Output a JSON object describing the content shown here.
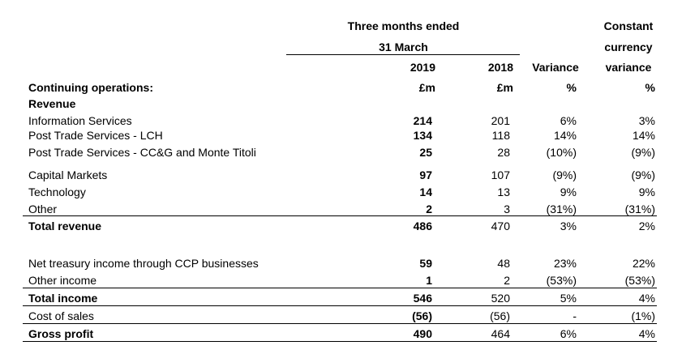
{
  "header": {
    "period_line1": "Three months ended",
    "period_line2": "31 March",
    "constant_line1": "Constant",
    "constant_line2": "currency",
    "constant_line3": "variance",
    "col_2019": "2019",
    "col_2018": "2018",
    "col_variance": "Variance",
    "unit_2019": "£m",
    "unit_2018": "£m",
    "unit_variance": "%",
    "unit_constant": "%"
  },
  "section": {
    "continuing": "Continuing operations:",
    "revenue": "Revenue"
  },
  "rows": [
    {
      "label": "Information Services",
      "y2019": "214",
      "y2018": "201",
      "variance": "6%",
      "constant": "3%"
    },
    {
      "label": "Post Trade Services - LCH",
      "y2019": "134",
      "y2018": "118",
      "variance": "14%",
      "constant": "14%"
    },
    {
      "label": "Post Trade Services - CC&G and Monte Titoli",
      "y2019": "25",
      "y2018": "28",
      "variance": "(10%)",
      "constant": "(9%)"
    },
    {
      "label": "Capital Markets",
      "y2019": "97",
      "y2018": "107",
      "variance": "(9%)",
      "constant": "(9%)"
    },
    {
      "label": "Technology",
      "y2019": "14",
      "y2018": "13",
      "variance": "9%",
      "constant": "9%"
    },
    {
      "label": "Other",
      "y2019": "2",
      "y2018": "3",
      "variance": "(31%)",
      "constant": "(31%)"
    },
    {
      "label": "Total revenue",
      "y2019": "486",
      "y2018": "470",
      "variance": "3%",
      "constant": "2%"
    },
    {
      "label": "Net treasury income through CCP businesses",
      "y2019": "59",
      "y2018": "48",
      "variance": "23%",
      "constant": "22%"
    },
    {
      "label": "Other income",
      "y2019": "1",
      "y2018": "2",
      "variance": "(53%)",
      "constant": "(53%)"
    },
    {
      "label": "Total income",
      "y2019": "546",
      "y2018": "520",
      "variance": "5%",
      "constant": "4%"
    },
    {
      "label": "Cost of sales",
      "y2019": "(56)",
      "y2018": "(56)",
      "variance": "-",
      "constant": "(1%)"
    },
    {
      "label": "Gross profit",
      "y2019": "490",
      "y2018": "464",
      "variance": "6%",
      "constant": "4%"
    }
  ]
}
